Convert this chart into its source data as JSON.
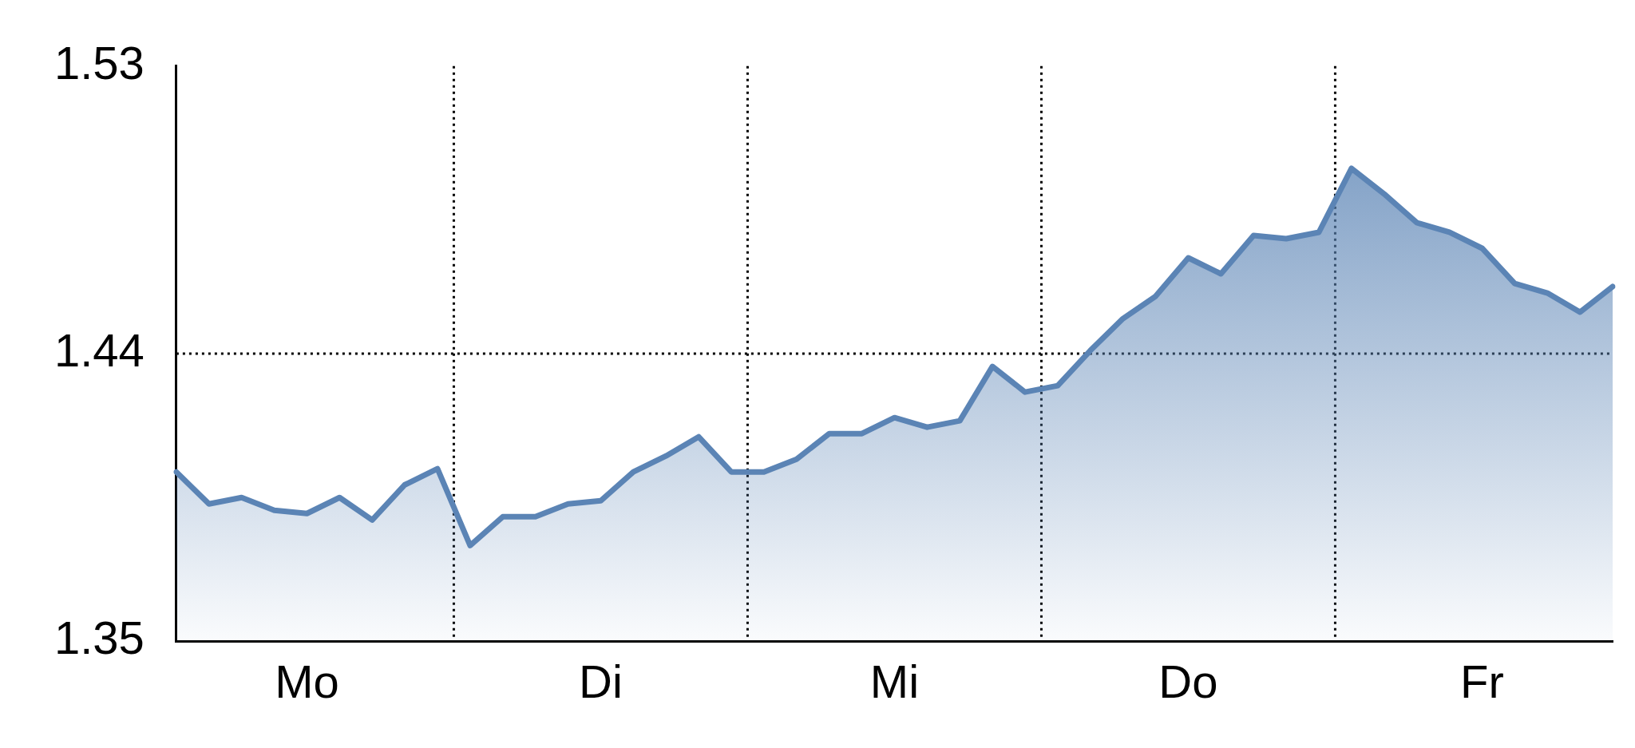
{
  "chart_data": {
    "type": "area",
    "categories": [
      null,
      null,
      null,
      null,
      "Mo",
      null,
      null,
      null,
      null,
      null,
      null,
      null,
      null,
      "Di",
      null,
      null,
      null,
      null,
      null,
      null,
      null,
      null,
      "Mi",
      null,
      null,
      null,
      null,
      null,
      null,
      null,
      null,
      "Do",
      null,
      null,
      null,
      null,
      null,
      null,
      null,
      null,
      "Fr",
      null,
      null,
      null,
      null
    ],
    "series": [
      {
        "color": "#5b84b5",
        "values": [
          1.403,
          1.393,
          1.395,
          1.391,
          1.39,
          1.395,
          1.388,
          1.399,
          1.404,
          1.38,
          1.389,
          1.389,
          1.393,
          1.394,
          1.403,
          1.408,
          1.414,
          1.403,
          1.403,
          1.407,
          1.415,
          1.415,
          1.42,
          1.417,
          1.419,
          1.436,
          1.428,
          1.43,
          1.441,
          1.451,
          1.458,
          1.47,
          1.465,
          1.477,
          1.476,
          1.478,
          1.498,
          1.49,
          1.481,
          1.478,
          1.473,
          1.462,
          1.459,
          1.453,
          1.461
        ]
      }
    ],
    "ylim": [
      1.35,
      1.53
    ],
    "yticks": [
      1.35,
      1.44,
      1.53
    ],
    "grid": "x",
    "legend": false,
    "marker": "none",
    "line_style": "solid",
    "ref_lines": [
      {
        "axis": "y",
        "value": 1.44,
        "color": "#000000",
        "line_style": "dotted"
      }
    ]
  }
}
